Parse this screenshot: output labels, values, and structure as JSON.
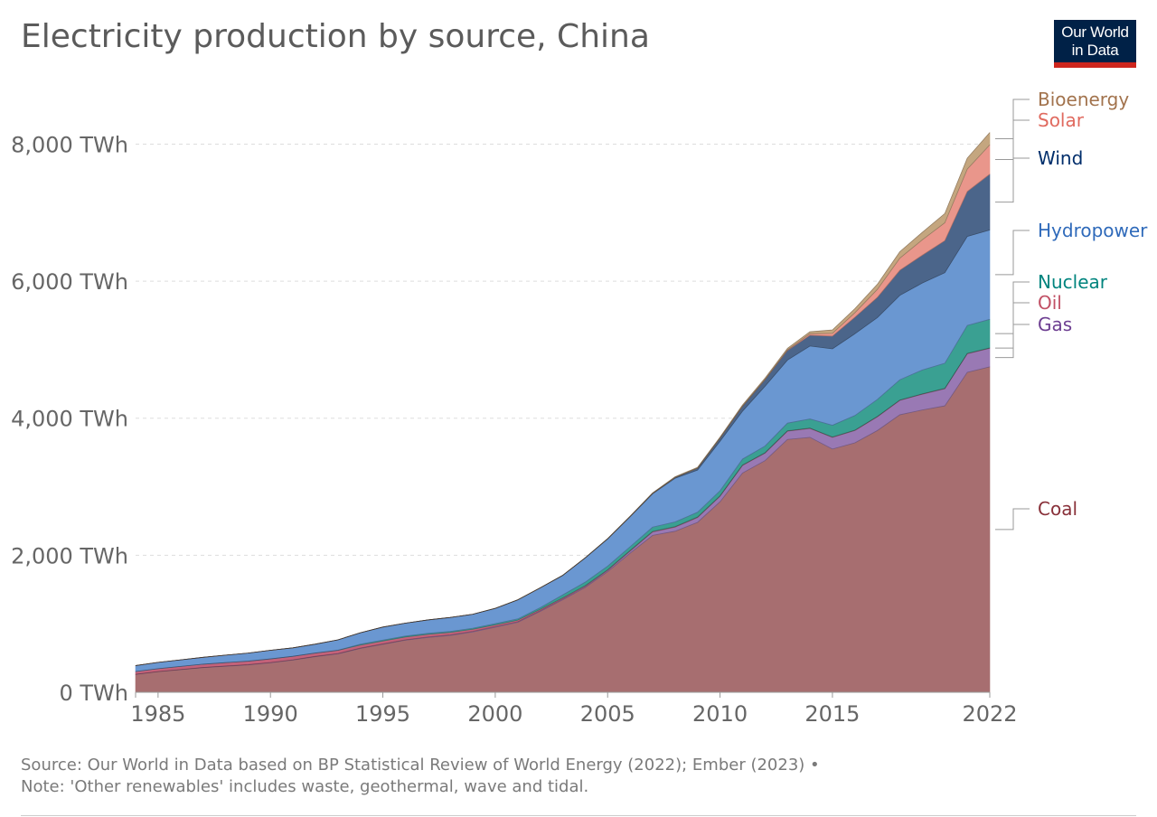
{
  "header": {
    "title": "Electricity production by source, China"
  },
  "logo": {
    "line1": "Our World",
    "line2": "in Data"
  },
  "footer": {
    "source": "Source: Our World in Data based on BP Statistical Review of World Energy (2022); Ember (2023)  •",
    "note": "Note: 'Other renewables' includes waste, geothermal, wave and tidal."
  },
  "chart_data": {
    "type": "area",
    "stacked": true,
    "title": "Electricity production by source, China",
    "ylabel": "",
    "xlabel": "",
    "ylim": [
      0,
      8850
    ],
    "xlim": [
      1984,
      2022
    ],
    "y_ticks": [
      0,
      2000,
      4000,
      6000,
      8000
    ],
    "y_tick_labels": [
      "0 TWh",
      "2,000 TWh",
      "4,000 TWh",
      "6,000 TWh",
      "8,000 TWh"
    ],
    "x_ticks": [
      1985,
      1990,
      1995,
      2000,
      2005,
      2010,
      2015,
      2022
    ],
    "x_tick_labels": [
      "1985",
      "1990",
      "1995",
      "2000",
      "2005",
      "2010",
      "2015",
      "2022"
    ],
    "grid": "horizontal dashed",
    "legend": "right, labels at series ends",
    "x": [
      1984,
      1985,
      1986,
      1987,
      1988,
      1989,
      1990,
      1991,
      1992,
      1993,
      1994,
      1995,
      1996,
      1997,
      1998,
      1999,
      2000,
      2001,
      2002,
      2003,
      2004,
      2005,
      2006,
      2007,
      2008,
      2009,
      2010,
      2011,
      2012,
      2013,
      2014,
      2015,
      2016,
      2017,
      2018,
      2019,
      2020,
      2021,
      2022
    ],
    "series": [
      {
        "name": "Coal",
        "color": "#a76e70",
        "label_color": "#883039",
        "values": [
          260,
          300,
          330,
          360,
          380,
          400,
          430,
          470,
          520,
          560,
          640,
          700,
          760,
          800,
          830,
          880,
          950,
          1020,
          1180,
          1350,
          1530,
          1760,
          2030,
          2290,
          2350,
          2480,
          2780,
          3200,
          3380,
          3690,
          3720,
          3550,
          3640,
          3820,
          4050,
          4120,
          4180,
          4670,
          4750
        ]
      },
      {
        "name": "Gas",
        "color": "#9979b4",
        "label_color": "#6d3e91",
        "values": [
          3,
          3,
          3,
          3,
          4,
          4,
          5,
          5,
          5,
          6,
          6,
          7,
          7,
          8,
          9,
          10,
          10,
          11,
          12,
          13,
          15,
          18,
          30,
          50,
          60,
          70,
          80,
          110,
          110,
          120,
          130,
          170,
          180,
          200,
          210,
          230,
          250,
          270,
          270
        ]
      },
      {
        "name": "Oil",
        "color": "#c4627a",
        "label_color": "#c15065",
        "values": [
          40,
          42,
          45,
          47,
          49,
          50,
          52,
          50,
          48,
          46,
          44,
          42,
          40,
          38,
          35,
          30,
          25,
          22,
          18,
          15,
          12,
          10,
          10,
          8,
          8,
          8,
          7,
          7,
          6,
          6,
          6,
          6,
          6,
          6,
          6,
          6,
          6,
          6,
          6
        ]
      },
      {
        "name": "Nuclear",
        "color": "#3aa092",
        "label_color": "#00847e",
        "values": [
          0,
          0,
          0,
          0,
          0,
          0,
          0,
          0,
          0,
          2,
          12,
          13,
          14,
          14,
          14,
          15,
          17,
          18,
          25,
          43,
          50,
          53,
          55,
          62,
          68,
          70,
          74,
          86,
          97,
          112,
          133,
          171,
          213,
          248,
          295,
          348,
          366,
          407,
          417
        ]
      },
      {
        "name": "Hydropower",
        "color": "#6a97d1",
        "label_color": "#2f6aba",
        "values": [
          87,
          92,
          95,
          100,
          109,
          118,
          126,
          124,
          130,
          151,
          167,
          190,
          188,
          196,
          204,
          204,
          222,
          277,
          288,
          284,
          353,
          397,
          436,
          486,
          637,
          615,
          722,
          699,
          872,
          920,
          1064,
          1115,
          1193,
          1194,
          1232,
          1269,
          1322,
          1300,
          1303
        ]
      },
      {
        "name": "Wind",
        "color": "#4b658a",
        "label_color": "#002e6b",
        "values": [
          0,
          0,
          0,
          0,
          0,
          0,
          0,
          0,
          0,
          0,
          0,
          0,
          0,
          0,
          0,
          0,
          1,
          1,
          1,
          1,
          1,
          2,
          4,
          6,
          13,
          28,
          45,
          70,
          96,
          140,
          156,
          186,
          241,
          295,
          366,
          406,
          467,
          656,
          815
        ]
      },
      {
        "name": "Solar",
        "color": "#e9968b",
        "label_color": "#e06a5f",
        "values": [
          0,
          0,
          0,
          0,
          0,
          0,
          0,
          0,
          0,
          0,
          0,
          0,
          0,
          0,
          0,
          0,
          0,
          0,
          0,
          0,
          0,
          0,
          0,
          0,
          0,
          0,
          1,
          3,
          4,
          8,
          23,
          40,
          66,
          117,
          176,
          224,
          261,
          327,
          428
        ]
      },
      {
        "name": "Bioenergy",
        "color": "#c4a67f",
        "label_color": "#a2734d",
        "values": [
          0,
          0,
          0,
          0,
          0,
          0,
          0,
          0,
          0,
          0,
          0,
          0,
          0,
          0,
          0,
          0,
          2,
          2,
          2,
          2,
          3,
          4,
          6,
          8,
          10,
          12,
          15,
          18,
          20,
          24,
          30,
          50,
          60,
          75,
          95,
          110,
          135,
          160,
          180
        ]
      }
    ]
  }
}
